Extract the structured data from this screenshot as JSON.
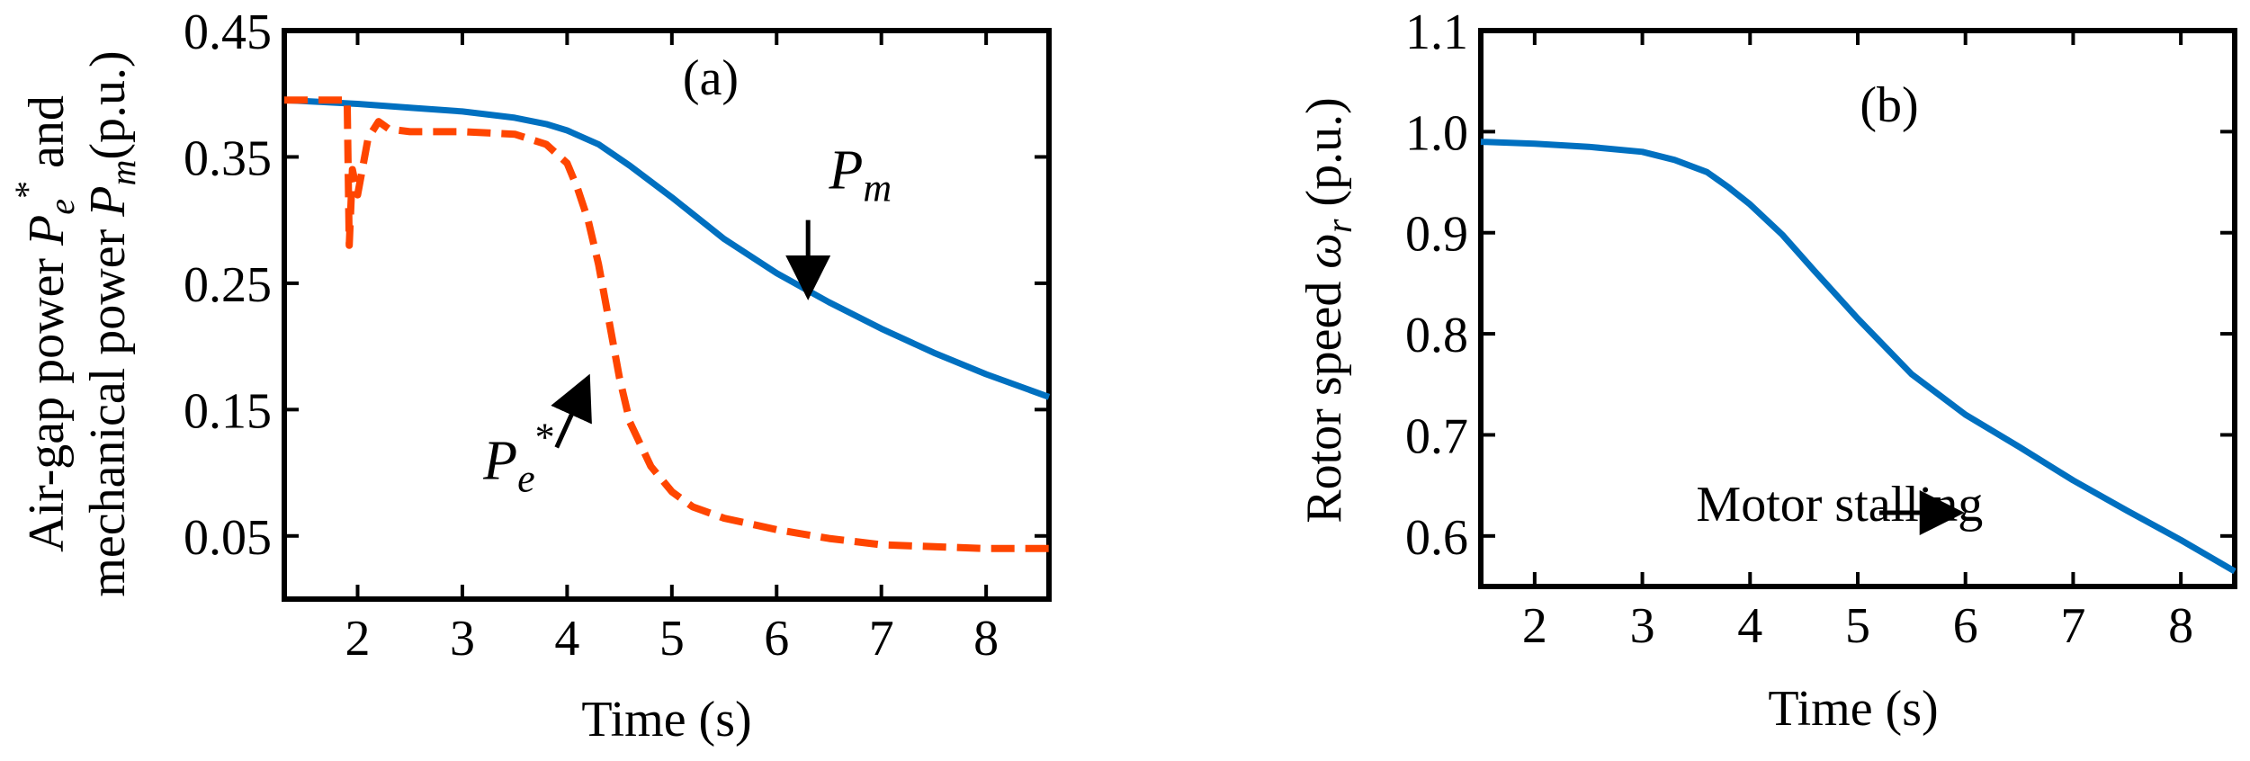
{
  "chart_data": [
    {
      "type": "line",
      "panel_label": "(a)",
      "xlabel": "Time (s)",
      "ylabel_line1": {
        "a": "Air-gap power ",
        "pe_sym": "P",
        "pe_sub": "e",
        "pe_sup": "*",
        "b": " and"
      },
      "ylabel_line2": {
        "a": "mechanical power ",
        "pm_sym": "P",
        "pm_sub": "m",
        "b": "(p.u.)"
      },
      "xlim": [
        1.3,
        8.6
      ],
      "ylim": [
        0.0,
        0.45
      ],
      "xticks": [
        2,
        3,
        4,
        5,
        6,
        7,
        8
      ],
      "yticks": [
        0.05,
        0.15,
        0.25,
        0.35,
        0.45
      ],
      "ytick_labels": [
        "0.05",
        "0.15",
        "0.25",
        "0.35",
        "0.45"
      ],
      "annotations": [
        {
          "sym": "P",
          "sub": "m",
          "sup": "",
          "text_at": [
            6.5,
            0.325
          ],
          "arrow_from": [
            6.3,
            0.3
          ],
          "arrow_to": [
            6.3,
            0.24
          ]
        },
        {
          "sym": "P",
          "sub": "e",
          "sup": "*",
          "text_at": [
            3.2,
            0.095
          ],
          "arrow_from": [
            3.9,
            0.12
          ],
          "arrow_to": [
            4.2,
            0.175
          ]
        }
      ],
      "series": [
        {
          "name": "P_m",
          "color": "#0070C0",
          "style": "solid",
          "x": [
            1.3,
            2.0,
            2.5,
            3.0,
            3.5,
            3.8,
            4.0,
            4.3,
            4.6,
            5.0,
            5.5,
            6.0,
            6.5,
            7.0,
            7.5,
            8.0,
            8.6
          ],
          "y": [
            0.395,
            0.392,
            0.389,
            0.386,
            0.381,
            0.376,
            0.371,
            0.36,
            0.343,
            0.318,
            0.285,
            0.258,
            0.235,
            0.214,
            0.195,
            0.178,
            0.16
          ]
        },
        {
          "name": "P_e*",
          "color": "#FF4500",
          "style": "dashed",
          "x": [
            1.3,
            1.9,
            1.92,
            1.95,
            2.0,
            2.1,
            2.2,
            2.3,
            2.5,
            3.0,
            3.5,
            3.8,
            4.0,
            4.1,
            4.2,
            4.3,
            4.4,
            4.5,
            4.6,
            4.8,
            5.0,
            5.2,
            5.5,
            6.0,
            6.5,
            7.0,
            8.0,
            8.6
          ],
          "y": [
            0.395,
            0.395,
            0.28,
            0.34,
            0.32,
            0.365,
            0.378,
            0.372,
            0.37,
            0.37,
            0.368,
            0.36,
            0.345,
            0.325,
            0.3,
            0.265,
            0.22,
            0.175,
            0.14,
            0.105,
            0.085,
            0.073,
            0.064,
            0.055,
            0.048,
            0.043,
            0.04,
            0.04
          ]
        }
      ]
    },
    {
      "type": "line",
      "panel_label": "(b)",
      "xlabel": "Time (s)",
      "ylabel": {
        "a": "Rotor speed ",
        "sym": "ω",
        "sub": "r",
        "b": " (p.u.)"
      },
      "xlim": [
        1.5,
        8.5
      ],
      "ylim": [
        0.55,
        1.1
      ],
      "xticks": [
        2,
        3,
        4,
        5,
        6,
        7,
        8
      ],
      "yticks": [
        0.6,
        0.7,
        0.8,
        0.9,
        1.0,
        1.1
      ],
      "ytick_labels": [
        "0.6",
        "0.7",
        "0.8",
        "0.9",
        "1.0",
        "1.1"
      ],
      "annotations": [
        {
          "text": "Motor stalling",
          "text_at": [
            3.5,
            0.615
          ],
          "arrow_from": [
            5.2,
            0.623
          ],
          "arrow_to": [
            5.95,
            0.623
          ]
        }
      ],
      "series": [
        {
          "name": "ω_r",
          "color": "#0070C0",
          "style": "solid",
          "x": [
            1.5,
            2.0,
            2.5,
            3.0,
            3.3,
            3.6,
            3.8,
            4.0,
            4.3,
            4.6,
            5.0,
            5.5,
            6.0,
            6.5,
            7.0,
            7.5,
            8.0,
            8.5
          ],
          "y": [
            0.99,
            0.988,
            0.985,
            0.98,
            0.972,
            0.96,
            0.945,
            0.928,
            0.898,
            0.862,
            0.815,
            0.76,
            0.72,
            0.688,
            0.655,
            0.625,
            0.596,
            0.565
          ]
        }
      ]
    }
  ]
}
